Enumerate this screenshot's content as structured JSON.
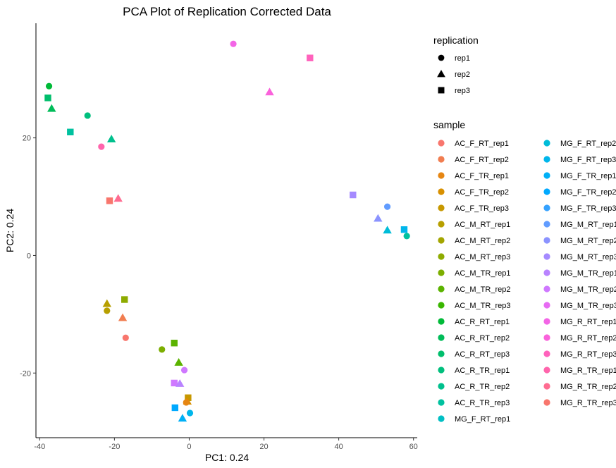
{
  "chart_data": {
    "type": "scatter",
    "title": "PCA Plot of Replication Corrected Data",
    "xlabel": "PC1: 0.24",
    "ylabel": "PC2: 0.24",
    "xlim": [
      -41,
      61
    ],
    "ylim": [
      -31,
      39.5
    ],
    "xticks": [
      -40,
      -20,
      0,
      20,
      40,
      60
    ],
    "yticks": [
      -20,
      0,
      20
    ],
    "grid": false,
    "legend_position": "right",
    "shape_legend": {
      "title": "replication",
      "items": [
        {
          "label": "rep1",
          "shape": "circle"
        },
        {
          "label": "rep2",
          "shape": "triangle"
        },
        {
          "label": "rep3",
          "shape": "square"
        }
      ]
    },
    "color_legend": {
      "title": "sample",
      "items": [
        {
          "label": "AC_F_RT_rep1",
          "color": "#F8766D"
        },
        {
          "label": "AC_F_RT_rep2",
          "color": "#F17D50"
        },
        {
          "label": "AC_F_TR_rep1",
          "color": "#E68613"
        },
        {
          "label": "AC_F_TR_rep2",
          "color": "#D89000"
        },
        {
          "label": "AC_F_TR_rep3",
          "color": "#C79800"
        },
        {
          "label": "AC_M_RT_rep1",
          "color": "#B79F00"
        },
        {
          "label": "AC_M_RT_rep2",
          "color": "#A3A500"
        },
        {
          "label": "AC_M_RT_rep3",
          "color": "#8EAB00"
        },
        {
          "label": "AC_M_TR_rep1",
          "color": "#7CAE00"
        },
        {
          "label": "AC_M_TR_rep2",
          "color": "#5BB300"
        },
        {
          "label": "AC_M_TR_rep3",
          "color": "#39B600"
        },
        {
          "label": "AC_R_RT_rep1",
          "color": "#00BA38"
        },
        {
          "label": "AC_R_RT_rep2",
          "color": "#00BC59"
        },
        {
          "label": "AC_R_RT_rep3",
          "color": "#00BE6C"
        },
        {
          "label": "AC_R_TR_rep1",
          "color": "#00BF7D"
        },
        {
          "label": "AC_R_TR_rep2",
          "color": "#00C08D"
        },
        {
          "label": "AC_R_TR_rep3",
          "color": "#00C19F"
        },
        {
          "label": "MG_F_RT_rep1",
          "color": "#00BFC4"
        },
        {
          "label": "MG_F_RT_rep2",
          "color": "#00BCD8"
        },
        {
          "label": "MG_F_RT_rep3",
          "color": "#00B6EB"
        },
        {
          "label": "MG_F_TR_rep1",
          "color": "#00B0F6"
        },
        {
          "label": "MG_F_TR_rep2",
          "color": "#00A9FF"
        },
        {
          "label": "MG_F_TR_rep3",
          "color": "#35A2FF"
        },
        {
          "label": "MG_M_RT_rep1",
          "color": "#619CFF"
        },
        {
          "label": "MG_M_RT_rep2",
          "color": "#8B93FF"
        },
        {
          "label": "MG_M_RT_rep3",
          "color": "#A58AFF"
        },
        {
          "label": "MG_M_TR_rep1",
          "color": "#B983FF"
        },
        {
          "label": "MG_M_TR_rep2",
          "color": "#CF78FF"
        },
        {
          "label": "MG_M_TR_rep3",
          "color": "#E76BF3"
        },
        {
          "label": "MG_R_RT_rep1",
          "color": "#F365E6"
        },
        {
          "label": "MG_R_RT_rep2",
          "color": "#FA62DB"
        },
        {
          "label": "MG_R_RT_rep3",
          "color": "#FF62BC"
        },
        {
          "label": "MG_R_TR_rep1",
          "color": "#FF65AC"
        },
        {
          "label": "MG_R_TR_rep2",
          "color": "#FF6C91"
        },
        {
          "label": "MG_R_TR_rep3",
          "color": "#F8766D"
        }
      ]
    },
    "points": [
      {
        "x": 11.8,
        "y": 36.0,
        "shape": "circle",
        "color": "#F365E6"
      },
      {
        "x": 32.3,
        "y": 33.6,
        "shape": "square",
        "color": "#FF62BC"
      },
      {
        "x": 21.5,
        "y": 27.8,
        "shape": "triangle",
        "color": "#FA62DB"
      },
      {
        "x": -37.5,
        "y": 28.8,
        "shape": "circle",
        "color": "#00BA38"
      },
      {
        "x": -37.8,
        "y": 26.8,
        "shape": "square",
        "color": "#00BE6C"
      },
      {
        "x": -36.8,
        "y": 25.0,
        "shape": "triangle",
        "color": "#00BC59"
      },
      {
        "x": -27.2,
        "y": 23.8,
        "shape": "circle",
        "color": "#00BF7D"
      },
      {
        "x": -31.8,
        "y": 21.0,
        "shape": "square",
        "color": "#00C19F"
      },
      {
        "x": -20.8,
        "y": 19.8,
        "shape": "triangle",
        "color": "#00C08D"
      },
      {
        "x": -23.5,
        "y": 18.5,
        "shape": "circle",
        "color": "#FF65AC"
      },
      {
        "x": 43.8,
        "y": 10.3,
        "shape": "square",
        "color": "#A58AFF"
      },
      {
        "x": -19.0,
        "y": 9.7,
        "shape": "triangle",
        "color": "#FF6C91"
      },
      {
        "x": -21.3,
        "y": 9.3,
        "shape": "square",
        "color": "#F8766D"
      },
      {
        "x": 53.0,
        "y": 8.3,
        "shape": "circle",
        "color": "#619CFF"
      },
      {
        "x": 50.5,
        "y": 6.3,
        "shape": "triangle",
        "color": "#8B93FF"
      },
      {
        "x": 57.5,
        "y": 4.4,
        "shape": "square",
        "color": "#00B6EB"
      },
      {
        "x": 53.0,
        "y": 4.3,
        "shape": "triangle",
        "color": "#00BCD8"
      },
      {
        "x": 58.2,
        "y": 3.3,
        "shape": "circle",
        "color": "#00C19F"
      },
      {
        "x": -17.3,
        "y": -7.5,
        "shape": "square",
        "color": "#8EAB00"
      },
      {
        "x": -22.0,
        "y": -8.2,
        "shape": "triangle",
        "color": "#B79F00"
      },
      {
        "x": -22.0,
        "y": -9.4,
        "shape": "circle",
        "color": "#B79F00"
      },
      {
        "x": -17.8,
        "y": -10.6,
        "shape": "triangle",
        "color": "#F17D50"
      },
      {
        "x": -17.0,
        "y": -14.0,
        "shape": "circle",
        "color": "#F8766D"
      },
      {
        "x": -4.0,
        "y": -14.9,
        "shape": "square",
        "color": "#5BB300"
      },
      {
        "x": -7.3,
        "y": -16.0,
        "shape": "circle",
        "color": "#7CAE00"
      },
      {
        "x": -2.8,
        "y": -18.2,
        "shape": "triangle",
        "color": "#5BB300"
      },
      {
        "x": -1.3,
        "y": -19.5,
        "shape": "circle",
        "color": "#CF78FF"
      },
      {
        "x": -4.0,
        "y": -21.7,
        "shape": "square",
        "color": "#CF78FF"
      },
      {
        "x": -2.5,
        "y": -21.8,
        "shape": "triangle",
        "color": "#B983FF"
      },
      {
        "x": -0.3,
        "y": -24.2,
        "shape": "square",
        "color": "#C79800"
      },
      {
        "x": -0.5,
        "y": -24.8,
        "shape": "triangle",
        "color": "#D89000"
      },
      {
        "x": -0.8,
        "y": -25.0,
        "shape": "circle",
        "color": "#E68613"
      },
      {
        "x": -3.8,
        "y": -25.9,
        "shape": "square",
        "color": "#00A9FF"
      },
      {
        "x": 0.2,
        "y": -26.8,
        "shape": "circle",
        "color": "#00B6EB"
      },
      {
        "x": -1.8,
        "y": -27.7,
        "shape": "triangle",
        "color": "#00B0F6"
      }
    ]
  }
}
